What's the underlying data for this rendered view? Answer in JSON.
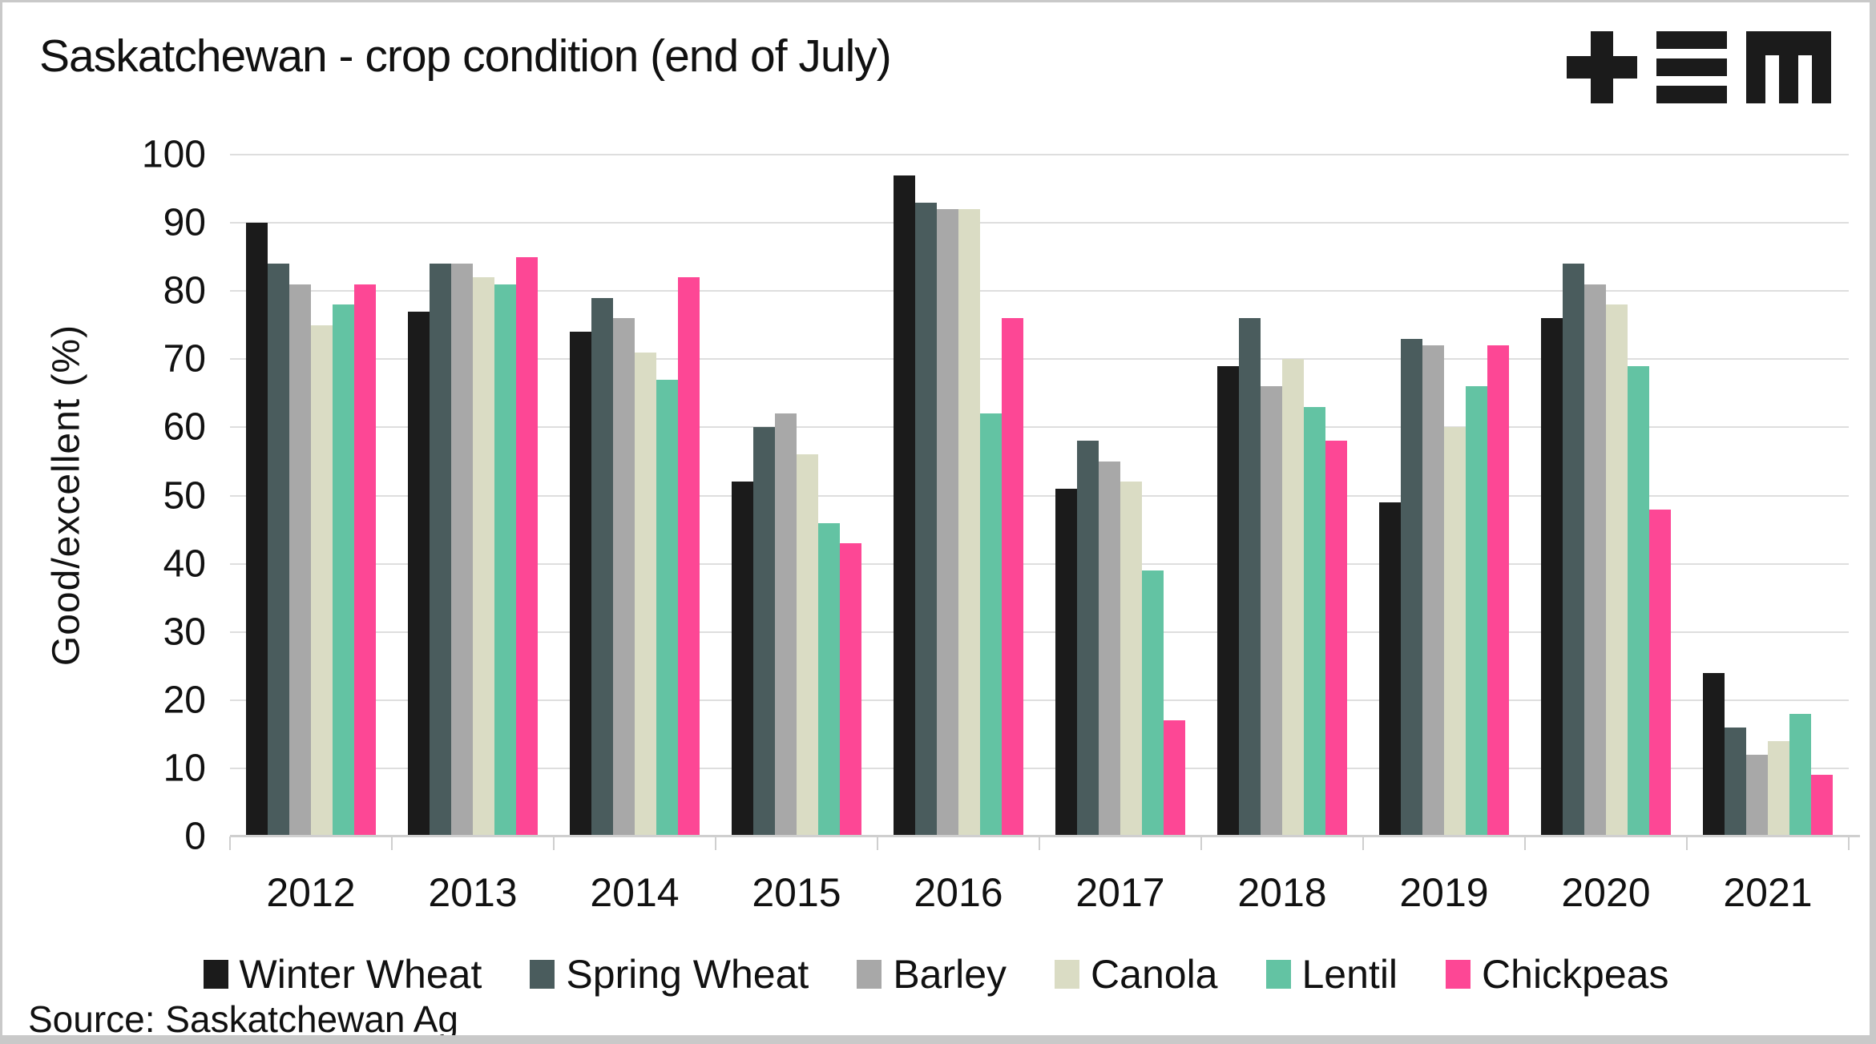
{
  "frame": {
    "border_color": "#c9c9c9",
    "background": "#ffffff"
  },
  "colors": {
    "gridline": "#dedede",
    "axis": "#cfcfcf",
    "text": "#111111",
    "logo": "#1b1b1b"
  },
  "logo": {
    "name": "plus-bars-m-logo"
  },
  "chart_data": {
    "type": "bar",
    "title": "Saskatchewan - crop condition (end of July)",
    "ylabel": "Good/excellent (%)",
    "xlabel": "",
    "ylim": [
      0,
      100
    ],
    "yticks": [
      0,
      10,
      20,
      30,
      40,
      50,
      60,
      70,
      80,
      90,
      100
    ],
    "grid": true,
    "legend_position": "bottom",
    "categories": [
      "2012",
      "2013",
      "2014",
      "2015",
      "2016",
      "2017",
      "2018",
      "2019",
      "2020",
      "2021"
    ],
    "series": [
      {
        "name": "Winter Wheat",
        "color": "#1b1b1b",
        "values": [
          90,
          77,
          74,
          52,
          97,
          51,
          69,
          49,
          76,
          24
        ]
      },
      {
        "name": "Spring Wheat",
        "color": "#4a5c5d",
        "values": [
          84,
          84,
          79,
          60,
          93,
          58,
          76,
          73,
          84,
          16
        ]
      },
      {
        "name": "Barley",
        "color": "#a8a8a8",
        "values": [
          81,
          84,
          76,
          62,
          92,
          55,
          66,
          72,
          81,
          12
        ]
      },
      {
        "name": "Canola",
        "color": "#dadcc4",
        "values": [
          75,
          82,
          71,
          56,
          92,
          52,
          70,
          60,
          78,
          14
        ]
      },
      {
        "name": "Lentil",
        "color": "#63c3a3",
        "values": [
          78,
          81,
          67,
          46,
          62,
          39,
          63,
          66,
          69,
          18
        ]
      },
      {
        "name": "Chickpeas",
        "color": "#fd4795",
        "values": [
          81,
          85,
          82,
          43,
          76,
          17,
          58,
          72,
          48,
          9
        ]
      }
    ],
    "source": "Source: Saskatchewan Ag"
  }
}
